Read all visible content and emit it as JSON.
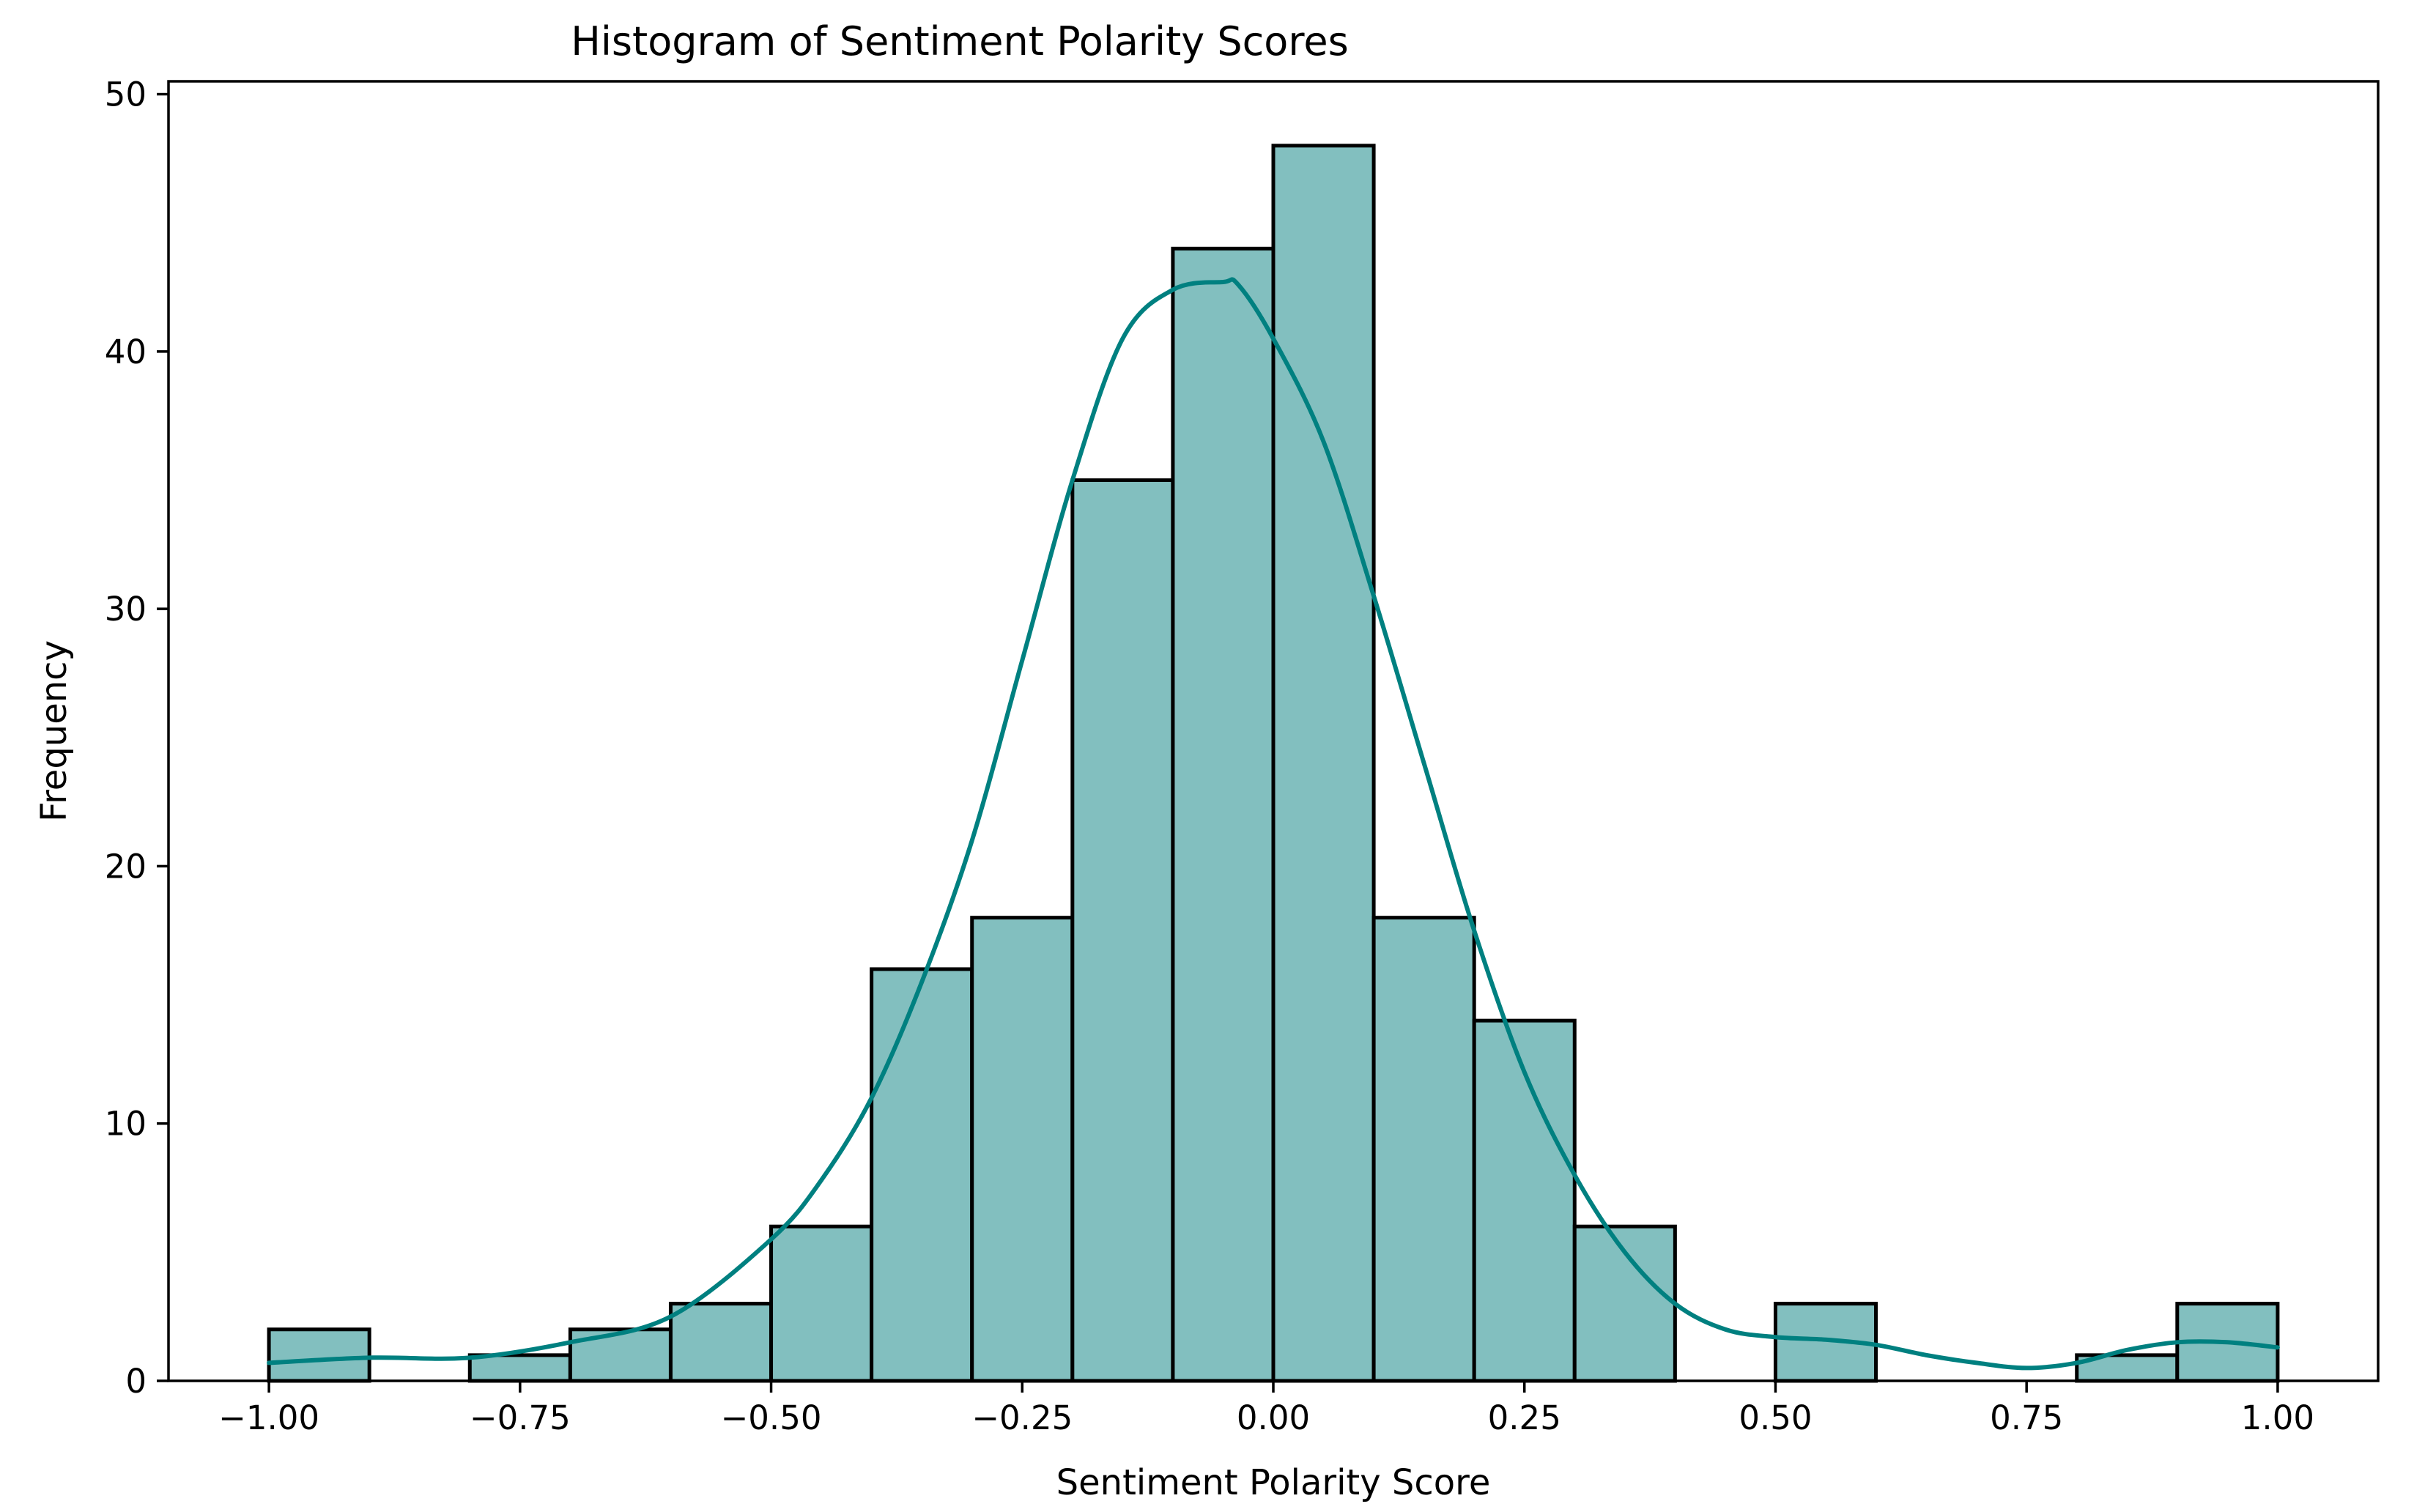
{
  "chart_data": {
    "type": "bar",
    "subtype": "histogram-with-kde",
    "title": "Histogram of Sentiment Polarity Scores",
    "xlabel": "Sentiment Polarity Score",
    "ylabel": "Frequency",
    "xlim": [
      -1.1,
      1.1
    ],
    "ylim": [
      0,
      50.5
    ],
    "xticks": [
      -1.0,
      -0.75,
      -0.5,
      -0.25,
      0.0,
      0.25,
      0.5,
      0.75,
      1.0
    ],
    "xtick_labels": [
      "−1.00",
      "−0.75",
      "−0.50",
      "−0.25",
      "0.00",
      "0.25",
      "0.50",
      "0.75",
      "1.00"
    ],
    "yticks": [
      0,
      10,
      20,
      30,
      40,
      50
    ],
    "ytick_labels": [
      "0",
      "10",
      "20",
      "30",
      "40",
      "50"
    ],
    "bin_edges": [
      -1.0,
      -0.9,
      -0.8,
      -0.7,
      -0.6,
      -0.5,
      -0.4,
      -0.3,
      -0.2,
      -0.1,
      0.0,
      0.1,
      0.2,
      0.3,
      0.4,
      0.5,
      0.6,
      0.7,
      0.8,
      0.9,
      1.0
    ],
    "counts": [
      2,
      0,
      1,
      2,
      3,
      6,
      16,
      18,
      35,
      44,
      48,
      18,
      14,
      6,
      0,
      3,
      0,
      0,
      1,
      3
    ],
    "kde": {
      "x": [
        -1.0,
        -0.9,
        -0.8,
        -0.7,
        -0.6,
        -0.5,
        -0.45,
        -0.4,
        -0.35,
        -0.3,
        -0.25,
        -0.2,
        -0.15,
        -0.1,
        -0.05,
        -0.035,
        0.0,
        0.05,
        0.1,
        0.15,
        0.2,
        0.25,
        0.3,
        0.35,
        0.4,
        0.45,
        0.5,
        0.55,
        0.6,
        0.65,
        0.7,
        0.75,
        0.8,
        0.85,
        0.9,
        0.95,
        1.0
      ],
      "y": [
        0.7,
        0.9,
        0.9,
        1.5,
        2.5,
        5.5,
        7.8,
        11.0,
        15.5,
        21.0,
        28.0,
        35.0,
        40.5,
        42.4,
        42.7,
        42.6,
        40.5,
        36.5,
        30.5,
        24.0,
        17.5,
        12.0,
        8.0,
        5.0,
        3.0,
        2.0,
        1.7,
        1.6,
        1.4,
        1.0,
        0.7,
        0.5,
        0.7,
        1.2,
        1.5,
        1.5,
        1.3
      ]
    },
    "bar_color": "#82bfbf",
    "kde_color": "#008080",
    "grid": false,
    "legend": "none"
  }
}
